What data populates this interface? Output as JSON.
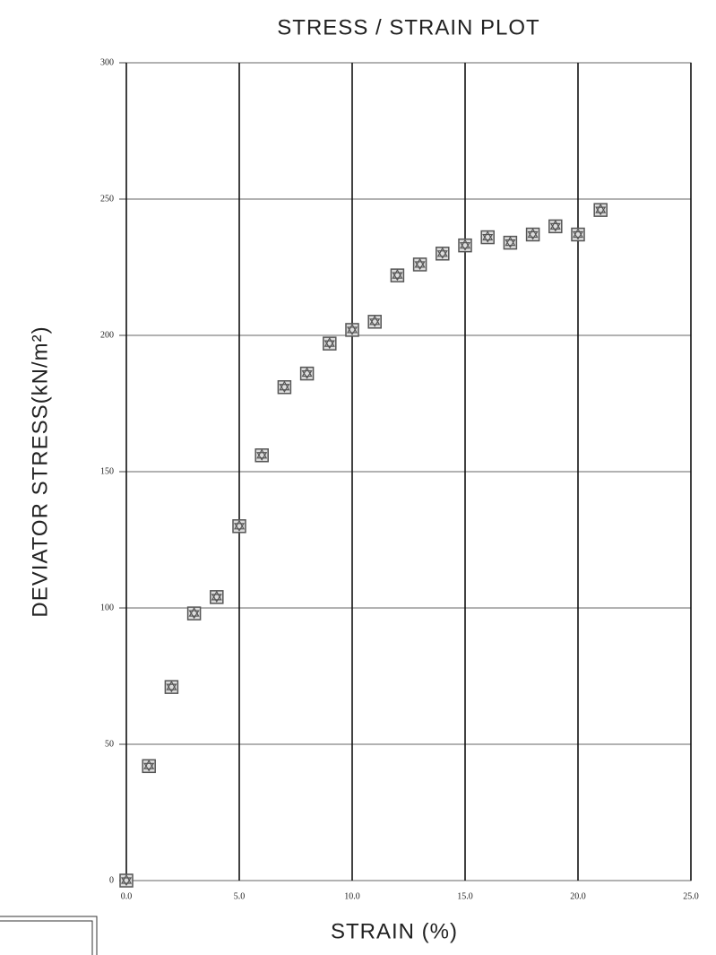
{
  "chart_data": {
    "type": "scatter",
    "title": "STRESS / STRAIN PLOT",
    "xlabel": "STRAIN (%)",
    "ylabel": "DEVIATOR STRESS(kN/m²)",
    "x": [
      0,
      1,
      2,
      3,
      4,
      5,
      6,
      7,
      8,
      9,
      10,
      11,
      12,
      13,
      14,
      15,
      16,
      17,
      18,
      19,
      20,
      21
    ],
    "values": [
      0,
      42,
      71,
      98,
      104,
      130,
      156,
      181,
      186,
      197,
      202,
      205,
      222,
      226,
      230,
      233,
      236,
      234,
      237,
      240,
      237,
      246
    ],
    "color": "#555555",
    "xlim": [
      0,
      25
    ],
    "xticks": [
      {
        "value": 0,
        "label": "0.0"
      },
      {
        "value": 5,
        "label": "5.0"
      },
      {
        "value": 10,
        "label": "10.0"
      },
      {
        "value": 15,
        "label": "15.0"
      },
      {
        "value": 20,
        "label": "20.0"
      },
      {
        "value": 25,
        "label": "25.0"
      }
    ],
    "ylim": [
      0,
      300
    ],
    "yticks": [
      0,
      50,
      100,
      150,
      200,
      250,
      300
    ],
    "grid": true
  }
}
